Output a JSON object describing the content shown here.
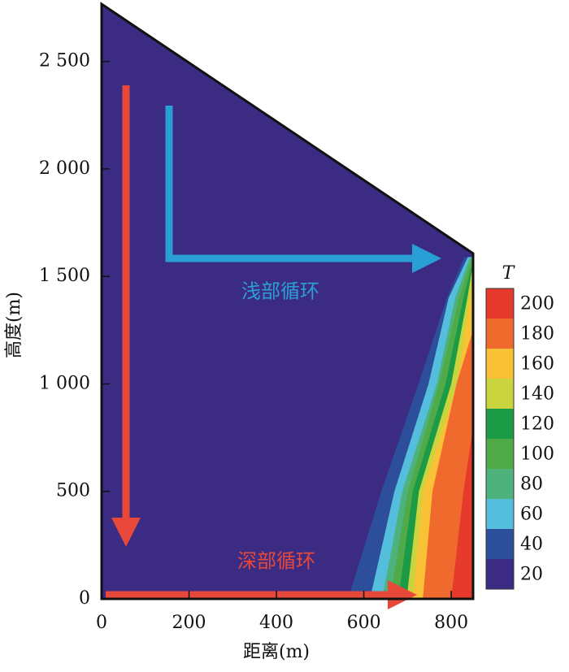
{
  "chart_data": {
    "type": "contour",
    "xlabel": "距离(m)",
    "ylabel": "高度(m)",
    "xlim": [
      0,
      850
    ],
    "ylim": [
      0,
      2767
    ],
    "xticks": [
      0,
      200,
      400,
      600,
      800
    ],
    "yticks": [
      0,
      500,
      {
        "value": 1000,
        "label": "1 000"
      },
      {
        "value": 1500,
        "label": "1 500"
      },
      {
        "value": 2000,
        "label": "2 000"
      },
      {
        "value": 2500,
        "label": "2 500"
      }
    ],
    "annotations": [
      "浅部循环",
      "深部循环"
    ],
    "colorbar": {
      "title": "T",
      "levels": [
        20,
        40,
        60,
        80,
        100,
        120,
        140,
        160,
        180,
        200
      ],
      "colors": [
        "#3b2b82",
        "#2d4e9a",
        "#55bedd",
        "#4db27c",
        "#4faa47",
        "#1c9b47",
        "#c9d43e",
        "#f8c136",
        "#f0692d",
        "#e53a2c"
      ]
    },
    "regions": [
      {
        "x": [
          0,
          850,
          850,
          0
        ],
        "y": [
          0,
          0,
          1607,
          2767
        ]
      },
      {
        "x": [
          564,
          640,
          725,
          790,
          830
        ],
        "y": [
          0,
          500,
          1000,
          1400,
          1590
        ]
      },
      {
        "x": [
          614,
          670,
          748,
          794,
          838
        ],
        "y": [
          0,
          500,
          1000,
          1400,
          1590
        ]
      },
      {
        "x": [
          642,
          688,
          767,
          809,
          842
        ],
        "y": [
          0,
          500,
          1000,
          1400,
          1585
        ]
      },
      {
        "x": [
          660,
          701,
          772,
          818,
          846
        ],
        "y": [
          0,
          500,
          1000,
          1400,
          1580
        ]
      },
      {
        "x": [
          679,
          712,
          787,
          828,
          850
        ],
        "y": [
          0,
          500,
          1000,
          1400,
          1575
        ]
      },
      {
        "x": [
          698,
          726,
          800,
          837,
          850
        ],
        "y": [
          0,
          500,
          1000,
          1400,
          1560
        ]
      },
      {
        "x": [
          712,
          735,
          813,
          843,
          850
        ],
        "y": [
          0,
          500,
          1000,
          1400,
          1500
        ]
      },
      {
        "x": [
          735,
          757,
          812,
          850
        ],
        "y": [
          0,
          500,
          1000,
          1250
        ]
      },
      {
        "x": [
          800,
          828,
          850
        ],
        "y": [
          0,
          500,
          800
        ]
      }
    ]
  }
}
